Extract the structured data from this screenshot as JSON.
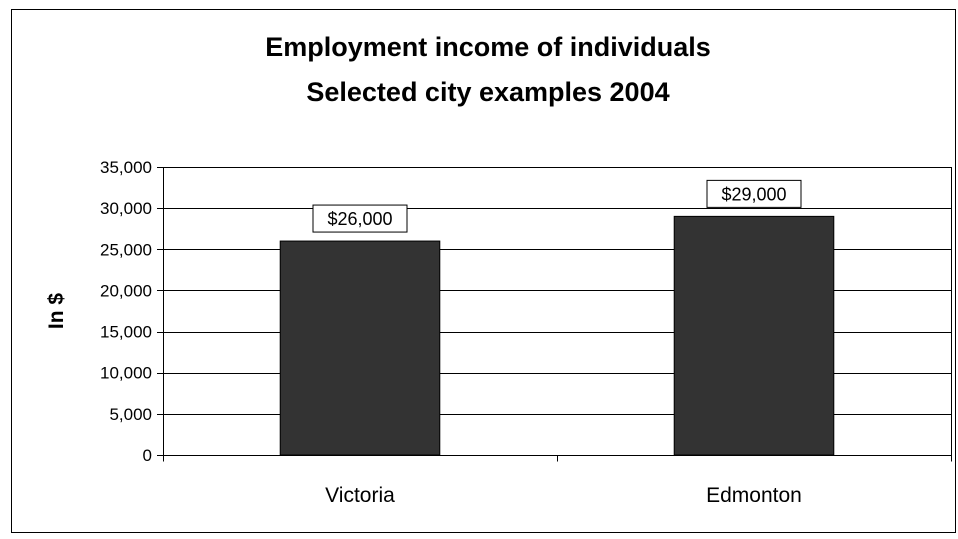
{
  "chart_data": {
    "type": "bar",
    "title": "Employment income of individuals",
    "subtitle": "Selected city examples 2004",
    "xlabel": "",
    "ylabel": "In $",
    "ylim": [
      0,
      35000
    ],
    "y_ticks": [
      0,
      5000,
      10000,
      15000,
      20000,
      25000,
      30000,
      35000
    ],
    "y_tick_labels": [
      "0",
      "5,000",
      "10,000",
      "15,000",
      "20,000",
      "25,000",
      "30,000",
      "35,000"
    ],
    "categories": [
      "Victoria",
      "Edmonton"
    ],
    "values": [
      26000,
      29000
    ],
    "data_labels": [
      "$26,000",
      "$29,000"
    ],
    "grid": true,
    "legend": "none",
    "colors": {
      "bar": "#333333",
      "gridline": "#000000",
      "background": "#ffffff"
    }
  }
}
